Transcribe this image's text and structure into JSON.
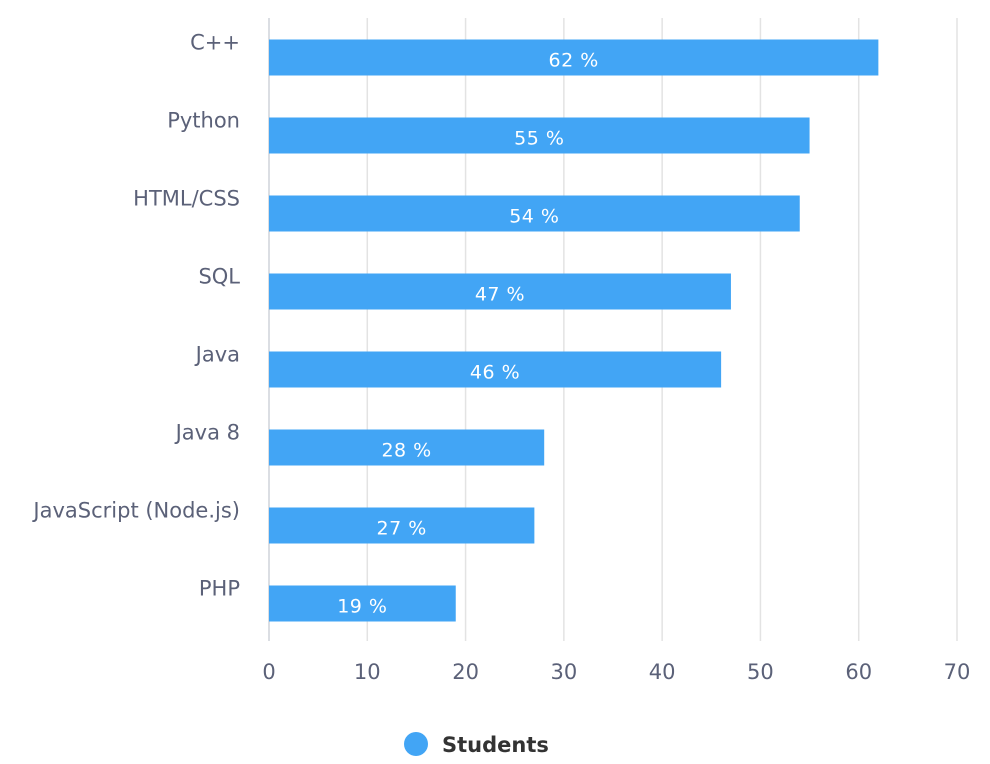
{
  "chart_data": {
    "type": "bar",
    "orientation": "horizontal",
    "categories": [
      "C++",
      "Python",
      "HTML/CSS",
      "SQL",
      "Java",
      "Java 8",
      "JavaScript (Node.js)",
      "PHP"
    ],
    "series": [
      {
        "name": "Students",
        "values": [
          62,
          55,
          54,
          47,
          46,
          28,
          27,
          19
        ],
        "data_labels": [
          "62 %",
          "55 %",
          "54 %",
          "47 %",
          "46 %",
          "28 %",
          "27 %",
          "19 %"
        ],
        "color": "#42a5f5"
      }
    ],
    "xlim": [
      0,
      70
    ],
    "x_ticks": [
      0,
      10,
      20,
      30,
      40,
      50,
      60,
      70
    ],
    "x_tick_labels": [
      "0",
      "10",
      "20",
      "30",
      "40",
      "50",
      "60",
      "70"
    ],
    "title": "",
    "xlabel": "",
    "ylabel": "",
    "grid": true,
    "legend_position": "bottom-center",
    "gridline_color": "#e3e3e3",
    "axis_color": "#cfd3da"
  }
}
